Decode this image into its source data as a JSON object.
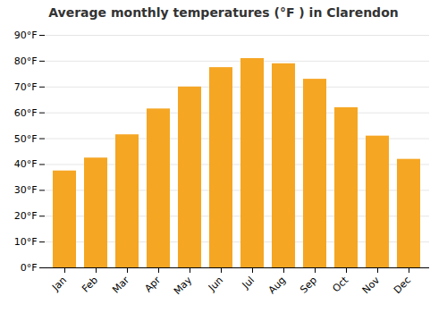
{
  "chart_data": {
    "type": "bar",
    "title": "Average monthly temperatures (°F ) in Clarendon",
    "categories": [
      "Jan",
      "Feb",
      "Mar",
      "Apr",
      "May",
      "Jun",
      "Jul",
      "Aug",
      "Sep",
      "Oct",
      "Nov",
      "Dec"
    ],
    "values": [
      37.5,
      42.5,
      51.5,
      61.5,
      70,
      77.5,
      81,
      79,
      73,
      62,
      51,
      42
    ],
    "color": "#F5A623",
    "ylim": [
      0,
      90
    ],
    "yticks": [
      {
        "value": 0,
        "label": "0°F"
      },
      {
        "value": 10,
        "label": "10°F"
      },
      {
        "value": 20,
        "label": "20°F"
      },
      {
        "value": 30,
        "label": "30°F"
      },
      {
        "value": 40,
        "label": "40°F"
      },
      {
        "value": 50,
        "label": "50°F"
      },
      {
        "value": 60,
        "label": "60°F"
      },
      {
        "value": 70,
        "label": "70°F"
      },
      {
        "value": 80,
        "label": "80°F"
      },
      {
        "value": 90,
        "label": "90°F"
      }
    ],
    "grid": true
  }
}
